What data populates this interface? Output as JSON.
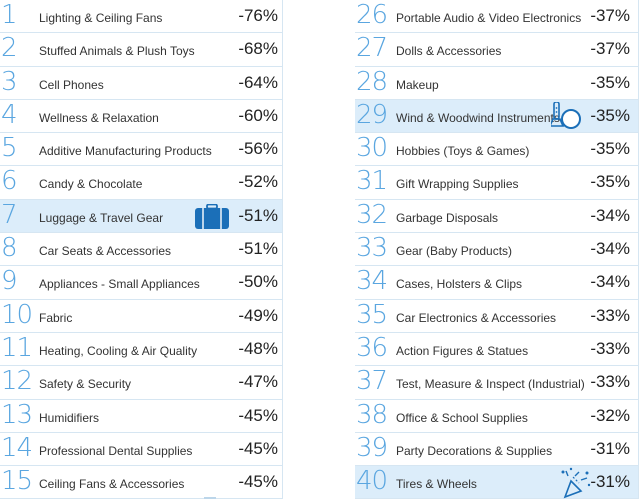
{
  "left_column": [
    {
      "rank": "1",
      "category": "Lighting & Ceiling Fans",
      "change": "-76%"
    },
    {
      "rank": "2",
      "category": "Stuffed Animals & Plush Toys",
      "change": "-68%"
    },
    {
      "rank": "3",
      "category": "Cell Phones",
      "change": "-64%"
    },
    {
      "rank": "4",
      "category": "Wellness & Relaxation",
      "change": "-60%"
    },
    {
      "rank": "5",
      "category": "Additive Manufacturing Products",
      "change": "-56%"
    },
    {
      "rank": "6",
      "category": "Candy & Chocolate",
      "change": "-52%"
    },
    {
      "rank": "7",
      "category": "Luggage & Travel Gear",
      "change": "-51%",
      "highlight": true,
      "icon": "luggage-icon"
    },
    {
      "rank": "8",
      "category": "Car Seats & Accessories",
      "change": "-51%"
    },
    {
      "rank": "9",
      "category": "Appliances - Small Appliances",
      "change": "-50%"
    },
    {
      "rank": "10",
      "category": "Fabric",
      "change": "-49%"
    },
    {
      "rank": "11",
      "category": "Heating, Cooling & Air Quality",
      "change": "-48%"
    },
    {
      "rank": "12",
      "category": "Safety & Security",
      "change": "-47%"
    },
    {
      "rank": "13",
      "category": "Humidifiers",
      "change": "-45%"
    },
    {
      "rank": "14",
      "category": "Professional Dental Supplies",
      "change": "-45%"
    },
    {
      "rank": "15",
      "category": "Ceiling Fans & Accessories",
      "change": "-45%"
    }
  ],
  "right_column": [
    {
      "rank": "26",
      "category": "Portable Audio & Video Electronics",
      "change": "-37%"
    },
    {
      "rank": "27",
      "category": "Dolls & Accessories",
      "change": "-37%"
    },
    {
      "rank": "28",
      "category": "Makeup",
      "change": "-35%"
    },
    {
      "rank": "29",
      "category": "Wind & Woodwind Instruments",
      "change": "-35%",
      "highlight": true,
      "icon": "microphone-icon"
    },
    {
      "rank": "30",
      "category": "Hobbies (Toys & Games)",
      "change": "-35%"
    },
    {
      "rank": "31",
      "category": "Gift Wrapping Supplies",
      "change": "-35%"
    },
    {
      "rank": "32",
      "category": "Garbage Disposals",
      "change": "-34%"
    },
    {
      "rank": "33",
      "category": "Gear (Baby Products)",
      "change": "-34%"
    },
    {
      "rank": "34",
      "category": "Cases, Holsters & Clips",
      "change": "-34%"
    },
    {
      "rank": "35",
      "category": "Car Electronics & Accessories",
      "change": "-33%"
    },
    {
      "rank": "36",
      "category": "Action Figures & Statues",
      "change": "-33%"
    },
    {
      "rank": "37",
      "category": "Test, Measure & Inspect (Industrial)",
      "change": "-33%"
    },
    {
      "rank": "38",
      "category": "Office & School Supplies",
      "change": "-32%"
    },
    {
      "rank": "39",
      "category": "Party Decorations & Supplies",
      "change": "-31%"
    },
    {
      "rank": "40",
      "category": "Tires & Wheels",
      "change": "-31%",
      "highlight": true,
      "icon": "party-popper-icon"
    }
  ],
  "colors": {
    "rank_number": "#5aa6e0",
    "highlight_row": "#dcedfa",
    "icon_blue": "#1b6fb8"
  }
}
